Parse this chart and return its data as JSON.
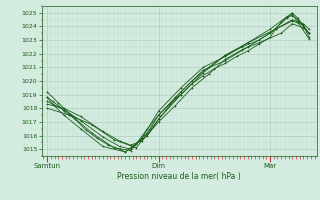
{
  "title": "Pression niveau de la mer( hPa )",
  "bg_color": "#d4ece0",
  "plot_bg_color": "#d4ece0",
  "line_color": "#1a5c1a",
  "grid_color_major": "#b0cfc0",
  "grid_color_minor": "#c4ddd0",
  "tick_color_x": "#cc3333",
  "ylim": [
    1014.5,
    1025.5
  ],
  "yticks": [
    1015,
    1016,
    1017,
    1018,
    1019,
    1020,
    1021,
    1022,
    1023,
    1024,
    1025
  ],
  "xtick_labels": [
    "Samtun",
    "Dim",
    "Mar"
  ],
  "xtick_positions": [
    0.0,
    1.0,
    2.0
  ],
  "xlabel": "Pression niveau de la mer( hPa )",
  "xlim": [
    -0.05,
    2.42
  ],
  "series": [
    [
      0.0,
      1018.8,
      0.05,
      1018.5,
      0.1,
      1018.2,
      0.15,
      1017.8,
      0.25,
      1017.2,
      0.35,
      1016.4,
      0.45,
      1015.8,
      0.55,
      1015.3,
      0.65,
      1015.0,
      0.7,
      1014.8,
      0.8,
      1015.4,
      0.9,
      1016.5,
      1.0,
      1017.5,
      1.1,
      1018.3,
      1.2,
      1019.0,
      1.3,
      1019.8,
      1.4,
      1020.4,
      1.5,
      1020.9,
      1.6,
      1021.3,
      1.7,
      1021.8,
      1.8,
      1022.2,
      1.9,
      1022.7,
      2.0,
      1023.2,
      2.05,
      1023.8,
      2.1,
      1024.3,
      2.15,
      1024.7,
      2.2,
      1024.8,
      2.25,
      1024.5,
      2.3,
      1024.0,
      2.35,
      1023.5
    ],
    [
      0.0,
      1018.8,
      0.05,
      1018.3,
      0.15,
      1017.5,
      0.3,
      1016.5,
      0.5,
      1015.2,
      0.7,
      1014.8,
      0.9,
      1016.0,
      1.0,
      1017.2,
      1.2,
      1019.2,
      1.4,
      1020.8,
      1.6,
      1021.5,
      1.8,
      1022.5,
      2.0,
      1023.5,
      2.15,
      1024.6,
      2.2,
      1024.9,
      2.25,
      1024.3,
      2.35,
      1023.1
    ],
    [
      0.0,
      1019.2,
      0.1,
      1018.4,
      0.2,
      1017.6,
      0.4,
      1016.2,
      0.6,
      1015.1,
      0.75,
      1014.9,
      0.85,
      1015.8,
      1.0,
      1017.8,
      1.2,
      1019.5,
      1.4,
      1021.0,
      1.6,
      1021.8,
      1.8,
      1022.8,
      2.0,
      1023.8,
      2.15,
      1024.7,
      2.2,
      1025.0,
      2.25,
      1024.6,
      2.35,
      1023.5
    ],
    [
      0.0,
      1018.5,
      0.15,
      1017.9,
      0.3,
      1017.1,
      0.5,
      1015.9,
      0.65,
      1015.2,
      0.75,
      1015.0,
      0.9,
      1016.2,
      1.0,
      1017.5,
      1.15,
      1018.8,
      1.3,
      1020.0,
      1.45,
      1021.0,
      1.6,
      1021.9,
      1.75,
      1022.5,
      1.9,
      1023.0,
      2.05,
      1023.8,
      2.2,
      1024.5,
      2.3,
      1024.2,
      2.35,
      1023.8
    ],
    [
      0.0,
      1018.3,
      0.15,
      1018.0,
      0.3,
      1017.4,
      0.5,
      1016.3,
      0.65,
      1015.6,
      0.75,
      1015.3,
      0.85,
      1015.6,
      1.0,
      1017.0,
      1.15,
      1018.2,
      1.3,
      1019.5,
      1.45,
      1020.5,
      1.6,
      1021.6,
      1.75,
      1022.3,
      1.9,
      1022.8,
      2.1,
      1023.5,
      2.2,
      1024.2,
      2.3,
      1023.9,
      2.35,
      1023.5
    ],
    [
      0.0,
      1018.0,
      0.2,
      1017.5,
      0.4,
      1016.8,
      0.6,
      1015.7,
      0.8,
      1015.1,
      1.0,
      1017.2,
      1.2,
      1019.0,
      1.4,
      1020.6,
      1.6,
      1021.9,
      1.8,
      1022.8,
      2.0,
      1023.6,
      2.2,
      1024.4,
      2.3,
      1024.1,
      2.35,
      1023.2
    ]
  ]
}
